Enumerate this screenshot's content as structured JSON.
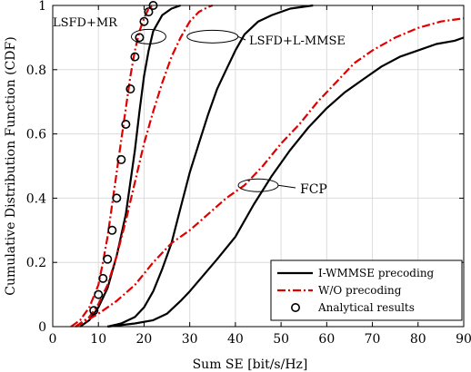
{
  "chart_data": {
    "type": "line",
    "xlabel": "Sum SE [bit/s/Hz]",
    "ylabel": "Cumulative Distribution Function (CDF)",
    "xlim": [
      0,
      90
    ],
    "ylim": [
      0,
      1
    ],
    "xticks": [
      0,
      10,
      20,
      30,
      40,
      50,
      60,
      70,
      80,
      90
    ],
    "yticks": [
      0,
      0.2,
      0.4,
      0.6,
      0.8,
      1
    ],
    "grid": true,
    "legend_position": "bottom-right",
    "legend": [
      {
        "label": "I-WMMSE precoding",
        "style": "solid-black"
      },
      {
        "label": "W/O precoding",
        "style": "dashdot-red"
      },
      {
        "label": "Analytical results",
        "style": "circle-marker"
      }
    ],
    "annotations": [
      {
        "text": "LSFD+MR",
        "target": [
          21,
          0.903
        ]
      },
      {
        "text": "LSFD+L-MMSE",
        "target": [
          35,
          0.903
        ]
      },
      {
        "text": "FCP",
        "target": [
          45,
          0.44
        ]
      }
    ],
    "series": [
      {
        "group": "LSFD+MR",
        "method": "I-WMMSE",
        "x": [
          6,
          8,
          10,
          12,
          14,
          16,
          17,
          18,
          19,
          20,
          21,
          22,
          24,
          26,
          28
        ],
        "y": [
          0,
          0.02,
          0.06,
          0.12,
          0.22,
          0.35,
          0.45,
          0.55,
          0.67,
          0.78,
          0.86,
          0.92,
          0.97,
          0.99,
          1
        ]
      },
      {
        "group": "LSFD+MR",
        "method": "W/O",
        "x": [
          4,
          6,
          8,
          10,
          11,
          12,
          13,
          14,
          15,
          16,
          17,
          18,
          19,
          20,
          21,
          22
        ],
        "y": [
          0,
          0.02,
          0.06,
          0.13,
          0.2,
          0.28,
          0.38,
          0.48,
          0.58,
          0.68,
          0.78,
          0.86,
          0.92,
          0.96,
          0.99,
          1
        ]
      },
      {
        "group": "LSFD+MR",
        "method": "Analytical",
        "x": [
          9,
          10,
          11,
          12,
          13,
          14,
          15,
          16,
          17,
          18,
          19,
          20,
          21,
          22
        ],
        "y": [
          0.05,
          0.1,
          0.15,
          0.21,
          0.3,
          0.4,
          0.52,
          0.63,
          0.74,
          0.84,
          0.9,
          0.95,
          0.98,
          1
        ]
      },
      {
        "group": "LSFD+L-MMSE",
        "method": "I-WMMSE",
        "x": [
          12,
          15,
          18,
          20,
          22,
          24,
          26,
          28,
          30,
          32,
          34,
          36,
          38,
          40,
          42,
          45,
          48,
          52,
          57
        ],
        "y": [
          0,
          0.01,
          0.03,
          0.06,
          0.11,
          0.18,
          0.26,
          0.37,
          0.48,
          0.57,
          0.66,
          0.74,
          0.8,
          0.86,
          0.91,
          0.95,
          0.97,
          0.99,
          1
        ]
      },
      {
        "group": "LSFD+L-MMSE",
        "method": "W/O",
        "x": [
          5,
          8,
          10,
          12,
          14,
          16,
          18,
          20,
          22,
          24,
          26,
          28,
          30,
          32,
          34,
          35
        ],
        "y": [
          0,
          0.03,
          0.07,
          0.13,
          0.22,
          0.33,
          0.45,
          0.57,
          0.67,
          0.76,
          0.84,
          0.9,
          0.95,
          0.98,
          0.995,
          1
        ]
      },
      {
        "group": "FCP",
        "method": "I-WMMSE",
        "x": [
          12,
          18,
          22,
          25,
          28,
          30,
          33,
          36,
          40,
          44,
          48,
          52,
          56,
          60,
          64,
          68,
          72,
          76,
          80,
          84,
          88,
          90
        ],
        "y": [
          0,
          0.01,
          0.02,
          0.04,
          0.08,
          0.11,
          0.16,
          0.21,
          0.28,
          0.38,
          0.47,
          0.55,
          0.62,
          0.68,
          0.73,
          0.77,
          0.81,
          0.84,
          0.86,
          0.88,
          0.89,
          0.9
        ]
      },
      {
        "group": "FCP",
        "method": "W/O",
        "x": [
          5,
          10,
          14,
          18,
          22,
          26,
          30,
          34,
          38,
          42,
          46,
          50,
          54,
          58,
          62,
          66,
          70,
          75,
          80,
          85,
          90
        ],
        "y": [
          0,
          0.04,
          0.08,
          0.13,
          0.2,
          0.26,
          0.3,
          0.35,
          0.4,
          0.44,
          0.5,
          0.57,
          0.63,
          0.7,
          0.76,
          0.82,
          0.86,
          0.9,
          0.93,
          0.95,
          0.96
        ]
      }
    ]
  }
}
